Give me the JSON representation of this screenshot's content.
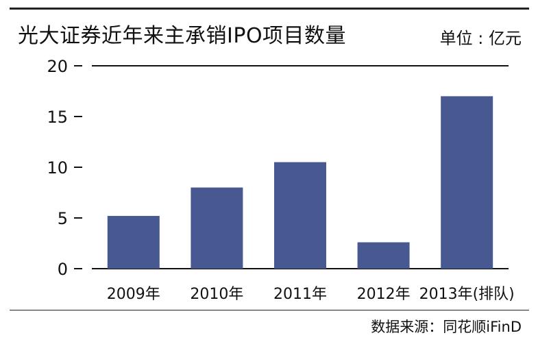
{
  "chart_data": {
    "type": "bar",
    "title": "光大证券近年来主承销IPO项目数量",
    "unit_label": "单位 : 亿元",
    "categories": [
      "2009年",
      "2010年",
      "2011年",
      "2012年",
      "2013年(排队)"
    ],
    "values": [
      5.2,
      8,
      10.5,
      2.6,
      17
    ],
    "ylim": [
      0,
      20
    ],
    "yticks": [
      0,
      5,
      10,
      15,
      20
    ],
    "grid": false,
    "bar_color": "#485891",
    "source": "数据来源：同花顺iFinD"
  }
}
